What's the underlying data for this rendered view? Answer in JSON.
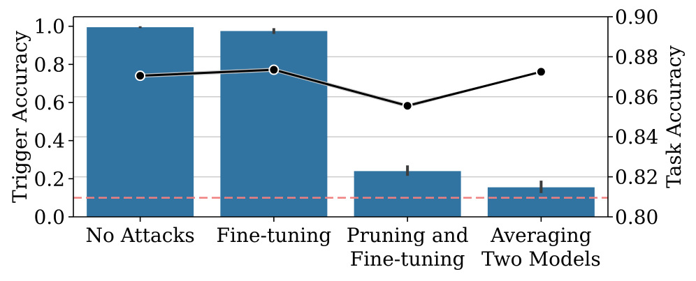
{
  "chart_data": {
    "type": "bar",
    "categories": [
      [
        "No Attacks"
      ],
      [
        "Fine-tuning"
      ],
      [
        "Pruning and",
        "Fine-tuning"
      ],
      [
        "Averaging",
        "Two Models"
      ]
    ],
    "bars": {
      "axis": "left",
      "values": [
        0.995,
        0.975,
        0.24,
        0.155
      ],
      "error_low": [
        0.99,
        0.96,
        0.215,
        0.125
      ],
      "error_high": [
        1.0,
        0.99,
        0.27,
        0.19
      ],
      "color": "#3274a1"
    },
    "line": {
      "axis": "right",
      "values": [
        0.8705,
        0.8735,
        0.8555,
        0.8725
      ],
      "band_low": [
        0.8695,
        0.8725,
        0.8545,
        0.8722
      ],
      "band_high": [
        0.8715,
        0.8745,
        0.8565,
        0.8728
      ],
      "color": "#000000",
      "band_color": "#c8c8c8"
    },
    "reference_line": {
      "y": 0.1,
      "axis": "left",
      "color": "#f08080",
      "style": "dashed"
    },
    "left_axis": {
      "label": "Trigger Accuracy",
      "ylim": [
        0,
        1.05
      ],
      "ticks": [
        0.0,
        0.2,
        0.4,
        0.6,
        0.8,
        1.0
      ],
      "tick_labels": [
        "0.0",
        "0.2",
        "0.4",
        "0.6",
        "0.8",
        "1.0"
      ]
    },
    "right_axis": {
      "label": "Task Accuracy",
      "ylim": [
        0.8,
        0.9
      ],
      "ticks": [
        0.8,
        0.82,
        0.84,
        0.86,
        0.88,
        0.9
      ],
      "tick_labels": [
        "0.80",
        "0.82",
        "0.84",
        "0.86",
        "0.88",
        "0.90"
      ]
    },
    "grid": "horizontal",
    "grid_color": "#cccccc",
    "legend": "none"
  }
}
